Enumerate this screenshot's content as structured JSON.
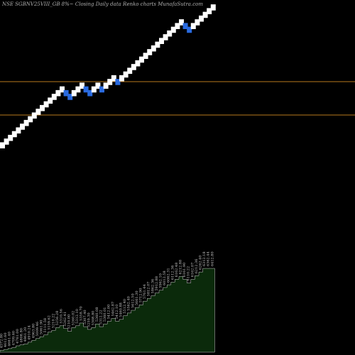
{
  "chart_data": {
    "type": "renko",
    "title": "NSE SGBNV25VIII_GB 8%~  Closing Daily data  Renko  charts MunafaSutra.com",
    "colors": {
      "background": "#000000",
      "up_brick": "#ffffff",
      "down_brick": "#2a6be0",
      "reference_line": "#b87a1e",
      "volume_fill": "#0b2a0b",
      "volume_stroke": "#ffffff",
      "label_text": "#c8c8c8"
    },
    "bricks": [
      "up",
      "up",
      "up",
      "up",
      "up",
      "up",
      "up",
      "up",
      "up",
      "up",
      "up",
      "up",
      "up",
      "up",
      "up",
      "up",
      "down",
      "down",
      "up",
      "up",
      "up",
      "down",
      "down",
      "up",
      "up",
      "down",
      "up",
      "up",
      "up",
      "down",
      "up",
      "up",
      "up",
      "up",
      "up",
      "up",
      "up",
      "up",
      "up",
      "up",
      "up",
      "up",
      "up",
      "up",
      "up",
      "up",
      "down",
      "down",
      "up",
      "up",
      "up",
      "up",
      "up",
      "up"
    ],
    "reference_lines": [
      4700,
      4150
    ],
    "price_labels": [
      "4572.80",
      "4612.60",
      "4661.40",
      "4709.60",
      "4761.00",
      "4808.80",
      "4861.20",
      "4910.24",
      "4963.80",
      "5009.46",
      "5061.90",
      "5111.58",
      "5159.62",
      "5210.22",
      "5256.28",
      "5310.56",
      "5262.41",
      "5210.00",
      "5260.02",
      "5312.10",
      "5358.70",
      "5307.40",
      "5259.30",
      "5308.80",
      "5360.08",
      "5312.22",
      "5360.01",
      "5412.00",
      "5462.87",
      "5412.10",
      "5460.88",
      "5512.40",
      "5562.40",
      "5612.50",
      "5661.30",
      "5712.90",
      "5761.44",
      "5812.07",
      "5862.36",
      "5912.88",
      "5962.10",
      "6012.58",
      "6062.31",
      "6112.36",
      "6162.48",
      "6212.88",
      "6161.90",
      "6110.22",
      "6162.07",
      "6212.36",
      "6262.40",
      "6312.18",
      "6362.44",
      "6412.80"
    ],
    "volume": [
      2,
      3,
      4,
      5,
      7,
      8,
      9,
      11,
      13,
      15,
      17,
      19,
      22,
      24,
      27,
      29,
      26,
      23,
      27,
      29,
      32,
      28,
      25,
      27,
      31,
      28,
      31,
      34,
      37,
      34,
      36,
      40,
      43,
      46,
      49,
      52,
      56,
      59,
      62,
      65,
      68,
      71,
      74,
      77,
      80,
      83,
      80,
      76,
      80,
      84,
      88,
      92,
      92,
      92
    ]
  }
}
